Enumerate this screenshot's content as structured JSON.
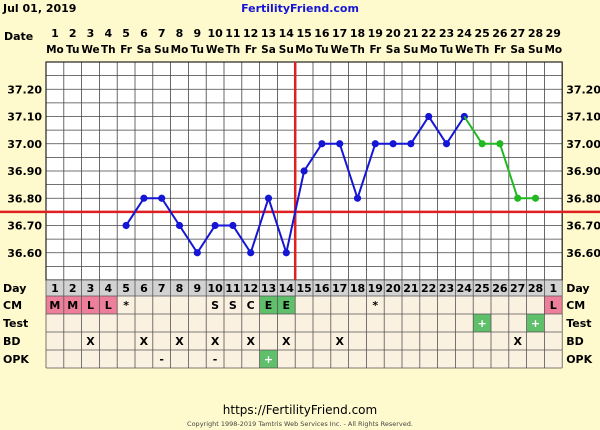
{
  "header": {
    "start_date": "Jul 01, 2019",
    "site_name": "FertilityFriend.com"
  },
  "footer": {
    "url": "https://FertilityFriend.com",
    "copyright": "Copyright 1998-2019 Tamtris Web Services Inc. - All Rights Reserved."
  },
  "labels": {
    "date": "Date",
    "day": "Day",
    "cm": "CM",
    "test": "Test",
    "bd": "BD",
    "opk": "OPK"
  },
  "colors": {
    "background": "#fffacd",
    "plot_background": "#ffffff",
    "grid": "#444444",
    "temperature_line": "#1515d6",
    "after_line": "#22b822",
    "coverline": "#e02020",
    "ovulation_line": "#e02020",
    "cm_menstrual": "#ee7f9a",
    "cm_egg_white": "#5fbf6a",
    "test_positive": "#5fbf6a",
    "opk_positive": "#5fbf6a"
  },
  "chart_data": {
    "type": "line",
    "dates": [
      "1",
      "2",
      "3",
      "4",
      "5",
      "6",
      "7",
      "8",
      "9",
      "10",
      "11",
      "12",
      "13",
      "14",
      "15",
      "16",
      "17",
      "18",
      "19",
      "20",
      "21",
      "22",
      "23",
      "24",
      "25",
      "26",
      "27",
      "28",
      "29"
    ],
    "weekdays": [
      "Mo",
      "Tu",
      "We",
      "Th",
      "Fr",
      "Sa",
      "Su",
      "Mo",
      "Tu",
      "We",
      "Th",
      "Fr",
      "Sa",
      "Su",
      "Mo",
      "Tu",
      "We",
      "Th",
      "Fr",
      "Sa",
      "Su",
      "Mo",
      "Tu",
      "We",
      "Th",
      "Fr",
      "Sa",
      "Su",
      "Mo"
    ],
    "cycle_days": [
      "1",
      "2",
      "3",
      "4",
      "5",
      "6",
      "7",
      "8",
      "9",
      "10",
      "11",
      "12",
      "13",
      "14",
      "15",
      "16",
      "17",
      "18",
      "19",
      "20",
      "21",
      "22",
      "23",
      "24",
      "25",
      "26",
      "27",
      "28",
      "1"
    ],
    "ylim": [
      36.5,
      37.3
    ],
    "yticks": [
      "36.60",
      "36.70",
      "36.80",
      "36.90",
      "37.00",
      "37.10",
      "37.20"
    ],
    "series": [
      {
        "x": [
          5,
          6,
          7,
          8,
          9,
          10,
          11,
          12,
          13,
          14,
          15,
          16,
          17,
          18,
          19,
          20,
          21,
          22,
          23,
          24
        ],
        "values": [
          36.7,
          36.8,
          36.8,
          36.7,
          36.6,
          36.7,
          36.7,
          36.6,
          36.8,
          36.6,
          36.9,
          37.0,
          37.0,
          36.8,
          37.0,
          37.0,
          37.0,
          37.1,
          37.0,
          37.1
        ],
        "color": "#1515d6"
      },
      {
        "x": [
          24,
          25,
          26,
          27,
          28
        ],
        "values": [
          37.1,
          37.0,
          37.0,
          36.8,
          36.8
        ],
        "color": "#22b822"
      }
    ],
    "coverline": 36.75,
    "ovulation_day": 14,
    "cm": [
      "M",
      "M",
      "L",
      "L",
      "*",
      "",
      "",
      "",
      "",
      "S",
      "S",
      "C",
      "E",
      "E",
      "",
      "",
      "",
      "",
      "*",
      "",
      "",
      "",
      "",
      "",
      "",
      "",
      "",
      "",
      "L"
    ],
    "test": [
      "",
      "",
      "",
      "",
      "",
      "",
      "",
      "",
      "",
      "",
      "",
      "",
      "",
      "",
      "",
      "",
      "",
      "",
      "",
      "",
      "",
      "",
      "",
      "",
      "+",
      "",
      "",
      "+",
      ""
    ],
    "bd": [
      "",
      "",
      "X",
      "",
      "",
      "X",
      "",
      "X",
      "",
      "X",
      "",
      "X",
      "",
      "X",
      "",
      "",
      "X",
      "",
      "",
      "",
      "",
      "",
      "",
      "",
      "",
      "",
      "X",
      "",
      ""
    ],
    "opk": [
      "",
      "",
      "",
      "",
      "",
      "",
      "-",
      "",
      "",
      "-",
      "",
      "",
      "+",
      "",
      "",
      "",
      "",
      "",
      "",
      "",
      "",
      "",
      "",
      "",
      "",
      "",
      "",
      "",
      ""
    ]
  }
}
